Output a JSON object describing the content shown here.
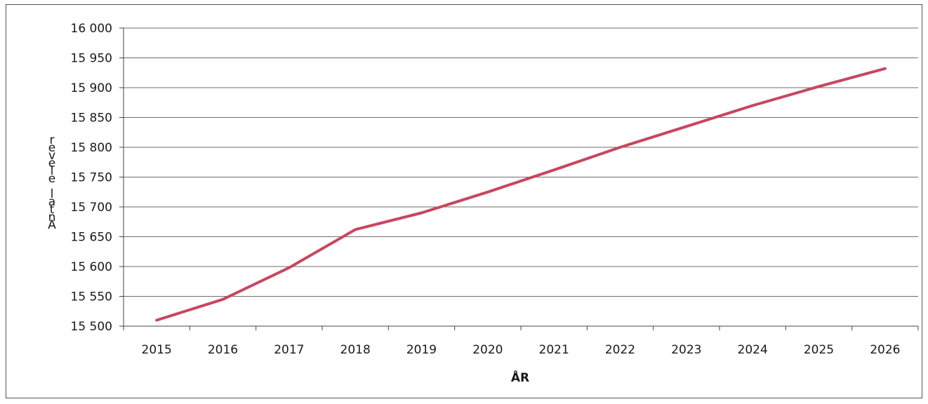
{
  "chart_data": {
    "type": "line",
    "title": "",
    "xlabel": "ÅR",
    "ylabel": "Antal elever",
    "categories": [
      "2015",
      "2016",
      "2017",
      "2018",
      "2019",
      "2020",
      "2021",
      "2022",
      "2023",
      "2024",
      "2025",
      "2026"
    ],
    "series": [
      {
        "values": [
          15510,
          15545,
          15598,
          15662,
          15690,
          15725,
          15762,
          15800,
          15835,
          15870,
          15902,
          15932
        ],
        "color": "#c8465f"
      }
    ],
    "ylim": [
      15500,
      16000
    ],
    "ytick_labels": [
      "16 000",
      "15 950",
      "15 900",
      "15 850",
      "15 800",
      "15 750",
      "15 700",
      "15 650",
      "15 600",
      "15 550",
      "15 500"
    ],
    "grid": true,
    "legend": "none"
  }
}
